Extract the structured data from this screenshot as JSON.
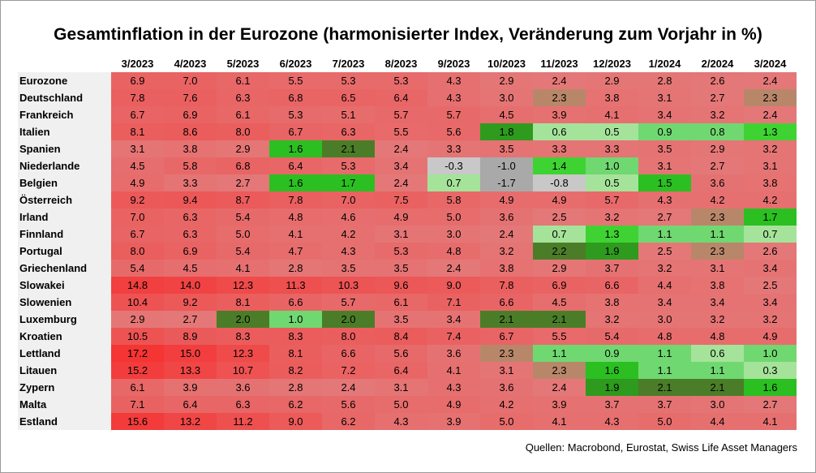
{
  "chart_data": {
    "type": "heatmap",
    "title": "Gesamtinflation in der Eurozone (harmonisierter Index, Veränderung zum Vorjahr in %)",
    "columns": [
      "3/2023",
      "4/2023",
      "5/2023",
      "6/2023",
      "7/2023",
      "8/2023",
      "9/2023",
      "10/2023",
      "11/2023",
      "12/2023",
      "1/2024",
      "2/2024",
      "3/2024"
    ],
    "rows": [
      {
        "name": "Eurozone",
        "values": [
          "6.9",
          "7.0",
          "6.1",
          "5.5",
          "5.3",
          "5.3",
          "4.3",
          "2.9",
          "2.4",
          "2.9",
          "2.8",
          "2.6",
          "2.4"
        ]
      },
      {
        "name": "Deutschland",
        "values": [
          "7.8",
          "7.6",
          "6.3",
          "6.8",
          "6.5",
          "6.4",
          "4.3",
          "3.0",
          "2.3",
          "3.8",
          "3.1",
          "2.7",
          "2.3"
        ]
      },
      {
        "name": "Frankreich",
        "values": [
          "6.7",
          "6.9",
          "6.1",
          "5.3",
          "5.1",
          "5.7",
          "5.7",
          "4.5",
          "3.9",
          "4.1",
          "3.4",
          "3.2",
          "2.4"
        ]
      },
      {
        "name": "Italien",
        "values": [
          "8.1",
          "8.6",
          "8.0",
          "6.7",
          "6.3",
          "5.5",
          "5.6",
          "1.8",
          "0.6",
          "0.5",
          "0.9",
          "0.8",
          "1.3"
        ]
      },
      {
        "name": "Spanien",
        "values": [
          "3.1",
          "3.8",
          "2.9",
          "1.6",
          "2.1",
          "2.4",
          "3.3",
          "3.5",
          "3.3",
          "3.3",
          "3.5",
          "2.9",
          "3.2"
        ]
      },
      {
        "name": "Niederlande",
        "values": [
          "4.5",
          "5.8",
          "6.8",
          "6.4",
          "5.3",
          "3.4",
          "-0.3",
          "-1.0",
          "1.4",
          "1.0",
          "3.1",
          "2.7",
          "3.1"
        ]
      },
      {
        "name": "Belgien",
        "values": [
          "4.9",
          "3.3",
          "2.7",
          "1.6",
          "1.7",
          "2.4",
          "0.7",
          "-1.7",
          "-0.8",
          "0.5",
          "1.5",
          "3.6",
          "3.8"
        ]
      },
      {
        "name": "Österreich",
        "values": [
          "9.2",
          "9.4",
          "8.7",
          "7.8",
          "7.0",
          "7.5",
          "5.8",
          "4.9",
          "4.9",
          "5.7",
          "4.3",
          "4.2",
          "4.2"
        ]
      },
      {
        "name": "Irland",
        "values": [
          "7.0",
          "6.3",
          "5.4",
          "4.8",
          "4.6",
          "4.9",
          "5.0",
          "3.6",
          "2.5",
          "3.2",
          "2.7",
          "2.3",
          "1.7"
        ]
      },
      {
        "name": "Finnland",
        "values": [
          "6.7",
          "6.3",
          "5.0",
          "4.1",
          "4.2",
          "3.1",
          "3.0",
          "2.4",
          "0.7",
          "1.3",
          "1.1",
          "1.1",
          "0.7"
        ]
      },
      {
        "name": "Portugal",
        "values": [
          "8.0",
          "6.9",
          "5.4",
          "4.7",
          "4.3",
          "5.3",
          "4.8",
          "3.2",
          "2.2",
          "1.9",
          "2.5",
          "2.3",
          "2.6"
        ]
      },
      {
        "name": "Griechenland",
        "values": [
          "5.4",
          "4.5",
          "4.1",
          "2.8",
          "3.5",
          "3.5",
          "2.4",
          "3.8",
          "2.9",
          "3.7",
          "3.2",
          "3.1",
          "3.4"
        ]
      },
      {
        "name": "Slowakei",
        "values": [
          "14.8",
          "14.0",
          "12.3",
          "11.3",
          "10.3",
          "9.6",
          "9.0",
          "7.8",
          "6.9",
          "6.6",
          "4.4",
          "3.8",
          "2.5"
        ]
      },
      {
        "name": "Slowenien",
        "values": [
          "10.4",
          "9.2",
          "8.1",
          "6.6",
          "5.7",
          "6.1",
          "7.1",
          "6.6",
          "4.5",
          "3.8",
          "3.4",
          "3.4",
          "3.4"
        ]
      },
      {
        "name": "Luxemburg",
        "values": [
          "2.9",
          "2.7",
          "2.0",
          "1.0",
          "2.0",
          "3.5",
          "3.4",
          "2.1",
          "2.1",
          "3.2",
          "3.0",
          "3.2",
          "3.2"
        ]
      },
      {
        "name": "Kroatien",
        "values": [
          "10.5",
          "8.9",
          "8.3",
          "8.3",
          "8.0",
          "8.4",
          "7.4",
          "6.7",
          "5.5",
          "5.4",
          "4.8",
          "4.8",
          "4.9"
        ]
      },
      {
        "name": "Lettland",
        "values": [
          "17.2",
          "15.0",
          "12.3",
          "8.1",
          "6.6",
          "5.6",
          "3.6",
          "2.3",
          "1.1",
          "0.9",
          "1.1",
          "0.6",
          "1.0"
        ]
      },
      {
        "name": "Litauen",
        "values": [
          "15.2",
          "13.3",
          "10.7",
          "8.2",
          "7.2",
          "6.4",
          "4.1",
          "3.1",
          "2.3",
          "1.6",
          "1.1",
          "1.1",
          "0.3"
        ]
      },
      {
        "name": "Zypern",
        "values": [
          "6.1",
          "3.9",
          "3.6",
          "2.8",
          "2.4",
          "3.1",
          "4.3",
          "3.6",
          "2.4",
          "1.9",
          "2.1",
          "2.1",
          "1.6"
        ]
      },
      {
        "name": "Malta",
        "values": [
          "7.1",
          "6.4",
          "6.3",
          "6.2",
          "5.6",
          "5.0",
          "4.9",
          "4.2",
          "3.9",
          "3.7",
          "3.7",
          "3.0",
          "2.7"
        ]
      },
      {
        "name": "Estland",
        "values": [
          "15.6",
          "13.2",
          "11.2",
          "9.0",
          "6.2",
          "4.3",
          "3.9",
          "5.0",
          "4.1",
          "4.3",
          "5.0",
          "4.4",
          "4.1"
        ]
      }
    ]
  },
  "source": "Quellen: Macrobond, Eurostat, Swiss Life Asset Managers"
}
